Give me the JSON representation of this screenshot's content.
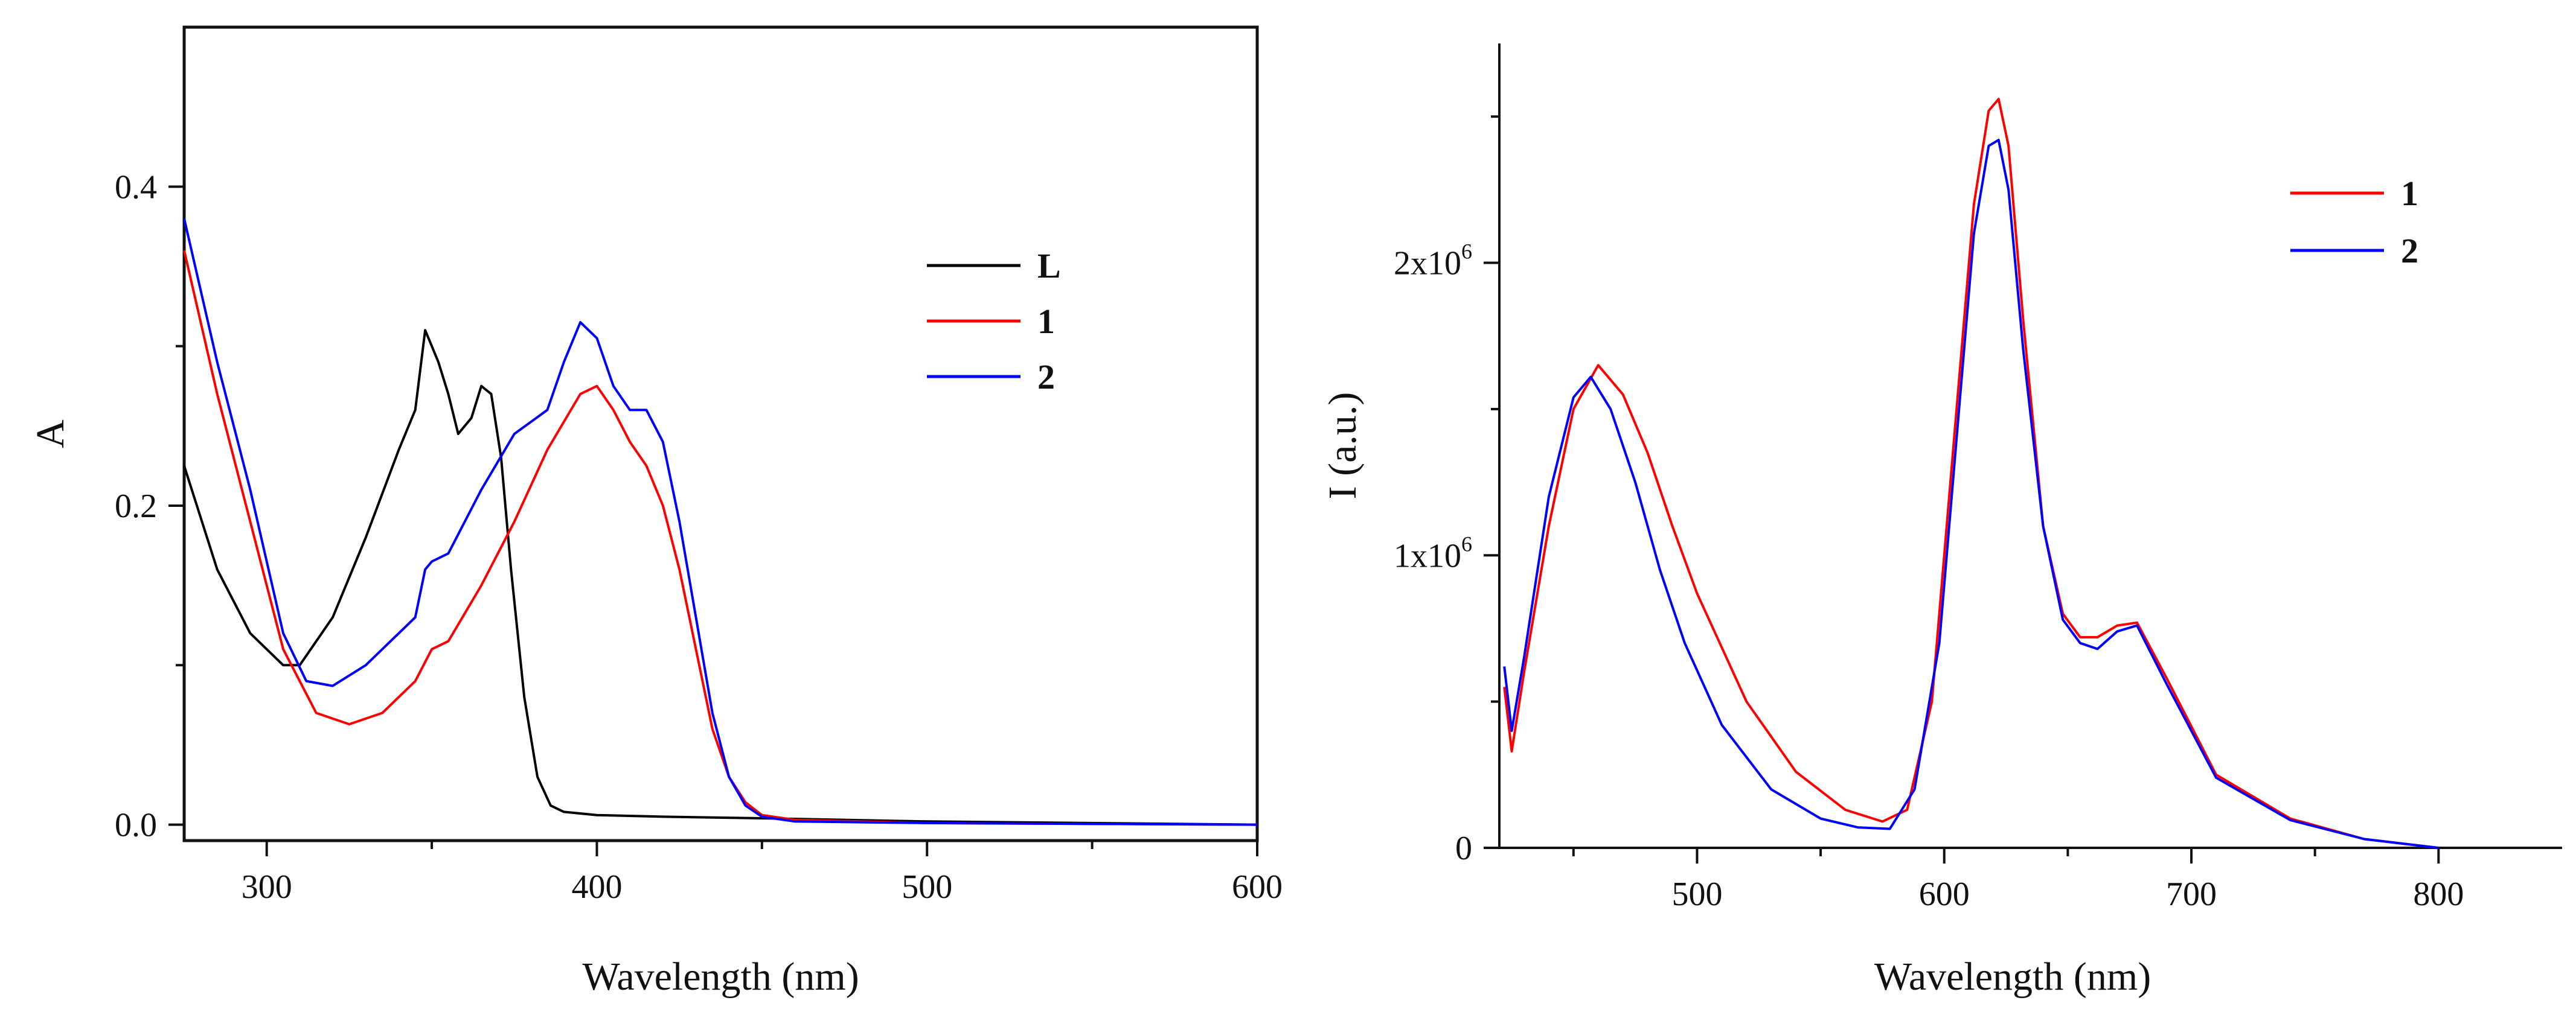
{
  "chart_data": [
    {
      "type": "line",
      "xlabel": "Wavelength (nm)",
      "ylabel": "A",
      "xlim": [
        275,
        600
      ],
      "ylim": [
        -0.01,
        0.5
      ],
      "xticks": [
        "300",
        "400",
        "500",
        "600"
      ],
      "yticks": [
        "0.0",
        "0.2",
        "0.4"
      ],
      "legend_position": "top-right",
      "series": [
        {
          "name": "L",
          "color": "#000000",
          "x": [
            275,
            285,
            295,
            305,
            310,
            320,
            330,
            340,
            345,
            348,
            350,
            352,
            355,
            358,
            362,
            365,
            368,
            371,
            374,
            378,
            382,
            386,
            390,
            400,
            420,
            450,
            500,
            600
          ],
          "y": [
            0.225,
            0.16,
            0.12,
            0.1,
            0.1,
            0.13,
            0.18,
            0.235,
            0.26,
            0.31,
            0.3,
            0.29,
            0.27,
            0.245,
            0.255,
            0.275,
            0.27,
            0.23,
            0.16,
            0.08,
            0.03,
            0.012,
            0.008,
            0.006,
            0.005,
            0.004,
            0.002,
            0.0
          ]
        },
        {
          "name": "1",
          "color": "#ff0000",
          "x": [
            275,
            285,
            295,
            305,
            315,
            325,
            335,
            345,
            350,
            355,
            365,
            375,
            385,
            395,
            400,
            405,
            410,
            415,
            420,
            425,
            430,
            435,
            440,
            445,
            450,
            460,
            500,
            600
          ],
          "y": [
            0.36,
            0.27,
            0.19,
            0.11,
            0.07,
            0.063,
            0.07,
            0.09,
            0.11,
            0.115,
            0.15,
            0.19,
            0.235,
            0.27,
            0.275,
            0.26,
            0.24,
            0.225,
            0.2,
            0.16,
            0.11,
            0.06,
            0.03,
            0.014,
            0.006,
            0.003,
            0.001,
            0.0
          ]
        },
        {
          "name": "2",
          "color": "#0000ff",
          "x": [
            275,
            285,
            295,
            305,
            312,
            320,
            330,
            340,
            345,
            348,
            350,
            355,
            365,
            375,
            385,
            390,
            395,
            400,
            405,
            410,
            415,
            420,
            425,
            430,
            435,
            440,
            445,
            450,
            460,
            500,
            600
          ],
          "y": [
            0.38,
            0.29,
            0.21,
            0.12,
            0.09,
            0.087,
            0.1,
            0.12,
            0.13,
            0.16,
            0.165,
            0.17,
            0.21,
            0.245,
            0.26,
            0.29,
            0.315,
            0.305,
            0.275,
            0.26,
            0.26,
            0.24,
            0.19,
            0.13,
            0.07,
            0.03,
            0.012,
            0.005,
            0.002,
            0.001,
            0.0
          ]
        }
      ]
    },
    {
      "type": "line",
      "xlabel": "Wavelength (nm)",
      "ylabel": "I (a.u.)",
      "xlim": [
        420,
        850
      ],
      "ylim": [
        0,
        2750000
      ],
      "xticks": [
        "500",
        "600",
        "700",
        "800"
      ],
      "yticks": [
        {
          "base": "0",
          "exp": ""
        },
        {
          "base": "1x10",
          "exp": "6"
        },
        {
          "base": "2x10",
          "exp": "6"
        }
      ],
      "legend_position": "top-right",
      "series": [
        {
          "name": "1",
          "color": "#ff0000",
          "x": [
            422,
            425,
            430,
            440,
            450,
            460,
            470,
            480,
            490,
            500,
            520,
            540,
            560,
            575,
            585,
            595,
            605,
            612,
            618,
            622,
            626,
            632,
            640,
            648,
            655,
            662,
            670,
            678,
            690,
            710,
            740,
            770,
            800
          ],
          "y": [
            550000,
            330000,
            600000,
            1100000,
            1500000,
            1650000,
            1550000,
            1350000,
            1100000,
            870000,
            500000,
            260000,
            130000,
            90000,
            130000,
            500000,
            1500000,
            2200000,
            2520000,
            2560000,
            2400000,
            1800000,
            1100000,
            800000,
            720000,
            720000,
            760000,
            770000,
            580000,
            250000,
            100000,
            30000,
            0
          ]
        },
        {
          "name": "2",
          "color": "#0000ff",
          "x": [
            422,
            425,
            430,
            440,
            450,
            457,
            465,
            475,
            485,
            495,
            510,
            530,
            550,
            565,
            578,
            588,
            598,
            606,
            612,
            618,
            622,
            626,
            632,
            640,
            648,
            655,
            662,
            670,
            678,
            690,
            710,
            740,
            770,
            800
          ],
          "y": [
            620000,
            400000,
            650000,
            1200000,
            1540000,
            1610000,
            1500000,
            1250000,
            950000,
            700000,
            420000,
            200000,
            100000,
            70000,
            65000,
            200000,
            700000,
            1500000,
            2100000,
            2400000,
            2420000,
            2250000,
            1700000,
            1100000,
            780000,
            700000,
            680000,
            740000,
            760000,
            560000,
            240000,
            95000,
            30000,
            0
          ]
        }
      ]
    }
  ]
}
